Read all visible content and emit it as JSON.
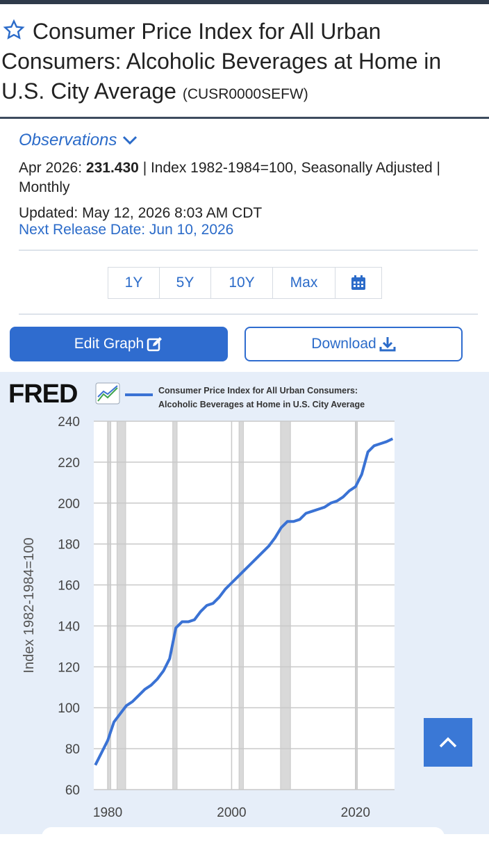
{
  "header": {
    "title": "Consumer Price Index for All Urban Consumers: Alcoholic Beverages at Home in U.S. City Average",
    "series_id": "(CUSR0000SEFW)"
  },
  "observations": {
    "heading": "Observations",
    "date": "Apr 2026:",
    "value": "231.430",
    "details": "| Index 1982-1984=100, Seasonally Adjusted | Monthly",
    "updated": "Updated: May 12, 2026 8:03 AM CDT",
    "next_release": "Next Release Date: Jun 10, 2026"
  },
  "ranges": [
    "1Y",
    "5Y",
    "10Y",
    "Max"
  ],
  "actions": {
    "edit": "Edit Graph",
    "download": "Download"
  },
  "chart_data": {
    "type": "line",
    "logo": "FRED",
    "legend": [
      "Consumer Price Index for All Urban Consumers:",
      "Alcoholic Beverages at Home in U.S. City Average"
    ],
    "y_label": "Index 1982-1984=100",
    "color": "#3a72d4",
    "grid": true,
    "x": [
      1978,
      1979,
      1980,
      1981,
      1982,
      1983,
      1984,
      1985,
      1986,
      1987,
      1988,
      1989,
      1990,
      1991,
      1992,
      1993,
      1994,
      1995,
      1996,
      1997,
      1998,
      1999,
      2000,
      2001,
      2002,
      2003,
      2004,
      2005,
      2006,
      2007,
      2008,
      2009,
      2010,
      2011,
      2012,
      2013,
      2014,
      2015,
      2016,
      2017,
      2018,
      2019,
      2020,
      2021,
      2022,
      2023,
      2024,
      2025,
      2026
    ],
    "values": [
      72,
      78,
      84,
      93,
      97,
      101,
      103,
      106,
      109,
      111,
      114,
      118,
      124,
      139,
      142,
      142,
      143,
      147,
      150,
      151,
      154,
      158,
      161,
      164,
      167,
      170,
      173,
      176,
      179,
      183,
      188,
      191,
      191,
      192,
      195,
      196,
      197,
      198,
      200,
      201,
      203,
      206,
      208,
      214,
      225,
      228,
      229,
      230,
      231.43
    ],
    "recessions": [
      [
        1980.0,
        1980.5
      ],
      [
        1981.5,
        1982.9
      ],
      [
        1990.5,
        1991.2
      ],
      [
        2001.2,
        2001.9
      ],
      [
        2007.9,
        2009.5
      ],
      [
        2020.1,
        2020.3
      ]
    ],
    "xlim": [
      1977.75,
      2026.3
    ],
    "ylim": [
      60,
      240
    ],
    "xticks": [
      1980,
      2000,
      2020
    ],
    "yticks": [
      60,
      80,
      100,
      120,
      140,
      160,
      180,
      200,
      220,
      240
    ]
  }
}
